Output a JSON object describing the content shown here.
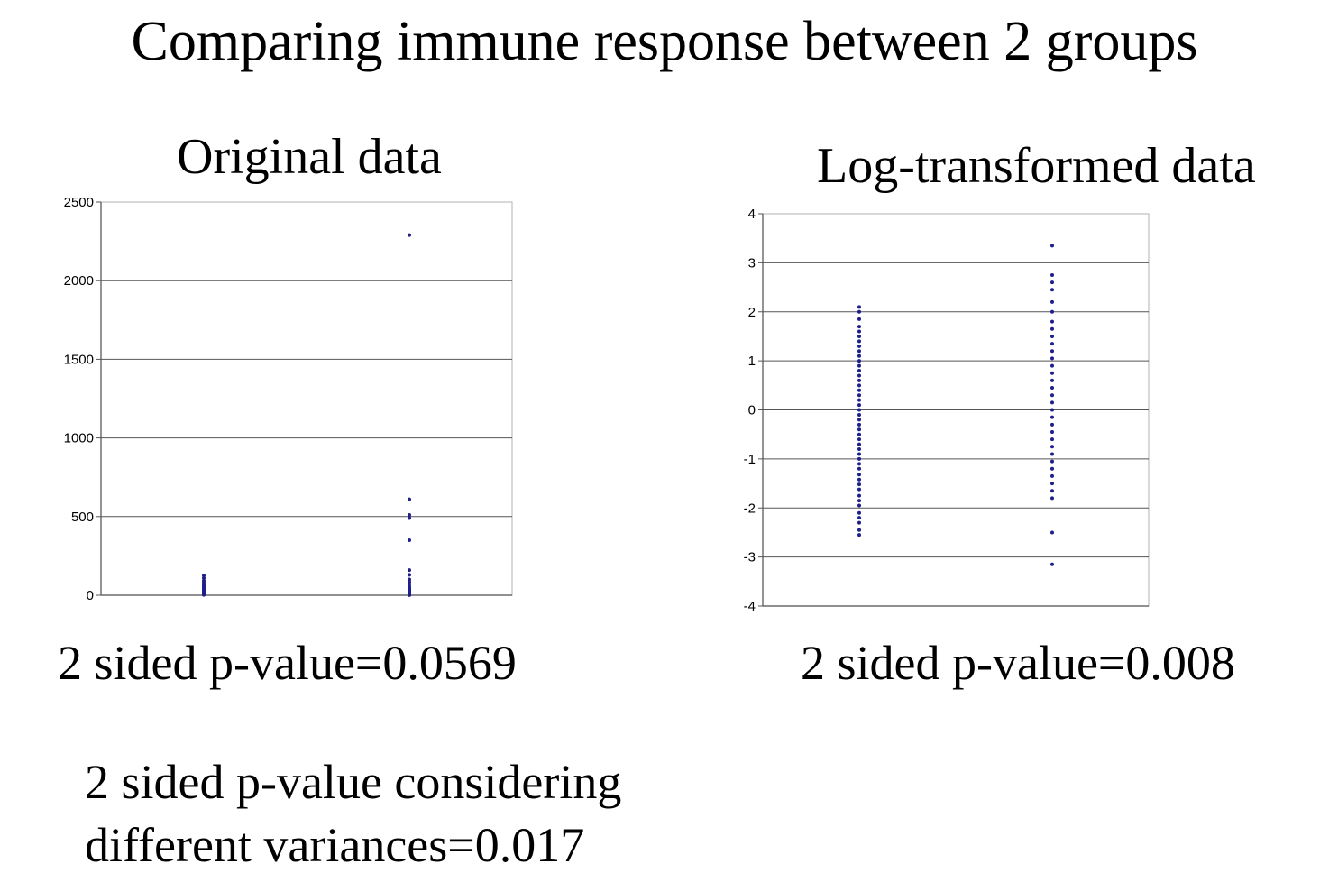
{
  "slide": {
    "title": "Comparing immune response between 2 groups",
    "left_pvalue": "2 sided p-value=0.0569",
    "right_pvalue": "2 sided p-value=0.008",
    "note_line1": "2 sided p-value considering",
    "note_line2": "different variances=0.017"
  },
  "chart_data": [
    {
      "type": "scatter",
      "title": "Original data",
      "xlabel": "",
      "ylabel": "",
      "xlim": [
        0,
        1
      ],
      "ylim": [
        0,
        2500
      ],
      "yticks": [
        "0",
        "500",
        "1000",
        "1500",
        "2000",
        "2500"
      ],
      "grid": true,
      "marker_color": "#1f1f8c",
      "series": [
        {
          "x": 0.25,
          "values": [
            2,
            4,
            6,
            8,
            10,
            12,
            14,
            16,
            18,
            20,
            22,
            24,
            27,
            30,
            33,
            36,
            40,
            44,
            48,
            53,
            58,
            64,
            70,
            80,
            92,
            108,
            125
          ]
        },
        {
          "x": 0.75,
          "values": [
            1,
            2,
            3,
            5,
            7,
            9,
            11,
            13,
            15,
            18,
            22,
            26,
            30,
            35,
            40,
            46,
            55,
            70,
            85,
            100,
            130,
            160,
            350,
            490,
            510,
            610,
            2290
          ]
        }
      ]
    },
    {
      "type": "scatter",
      "title": "Log-transformed data",
      "xlabel": "",
      "ylabel": "",
      "xlim": [
        0,
        1
      ],
      "ylim": [
        -4,
        4
      ],
      "yticks": [
        "-4",
        "-3",
        "-2",
        "-1",
        "0",
        "1",
        "2",
        "3",
        "4"
      ],
      "grid": true,
      "marker_color": "#1f1f8c",
      "series": [
        {
          "x": 0.25,
          "values": [
            -2.55,
            -2.45,
            -2.3,
            -2.2,
            -2.1,
            -1.95,
            -1.85,
            -1.75,
            -1.62,
            -1.52,
            -1.42,
            -1.32,
            -1.2,
            -1.1,
            -1.0,
            -0.9,
            -0.8,
            -0.7,
            -0.6,
            -0.5,
            -0.4,
            -0.3,
            -0.2,
            -0.1,
            0.0,
            0.1,
            0.2,
            0.3,
            0.4,
            0.5,
            0.6,
            0.7,
            0.8,
            0.9,
            1.0,
            1.1,
            1.2,
            1.3,
            1.4,
            1.5,
            1.6,
            1.7,
            1.85,
            2.0,
            2.1
          ]
        },
        {
          "x": 0.75,
          "values": [
            -3.15,
            -2.5,
            -1.8,
            -1.65,
            -1.5,
            -1.35,
            -1.2,
            -1.05,
            -0.9,
            -0.75,
            -0.6,
            -0.45,
            -0.3,
            -0.15,
            0.0,
            0.15,
            0.3,
            0.45,
            0.6,
            0.75,
            0.9,
            1.05,
            1.2,
            1.35,
            1.5,
            1.65,
            1.8,
            2.0,
            2.2,
            2.45,
            2.6,
            2.75,
            3.35
          ]
        }
      ]
    }
  ]
}
